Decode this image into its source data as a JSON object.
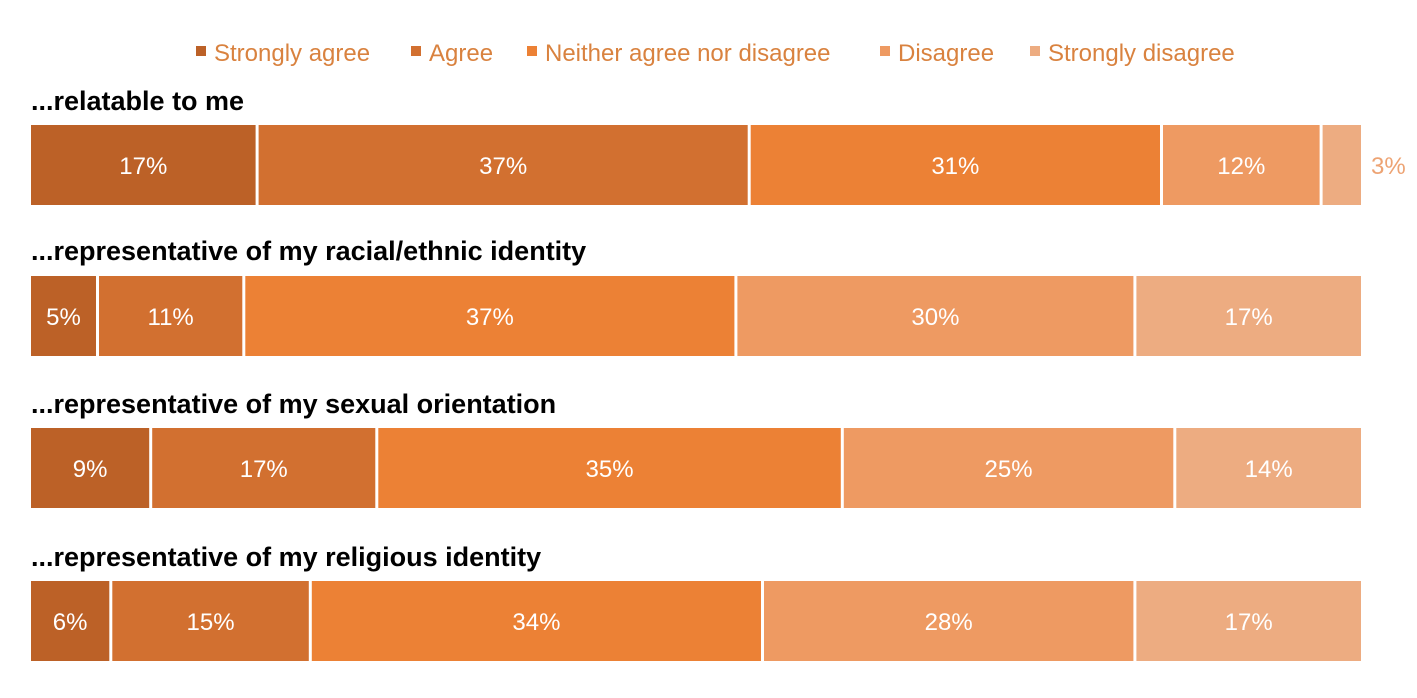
{
  "chart_data": {
    "type": "bar",
    "orientation": "horizontal",
    "stacked": true,
    "percent_scale": true,
    "title": "",
    "xlabel": "",
    "ylabel": "",
    "legend_position": "top",
    "grid": false,
    "categories": [
      "...relatable to me",
      "...representative of my racial/ethnic identity",
      "...representative of my sexual orientation",
      "...representative of my religious identity"
    ],
    "series": [
      {
        "name": "Strongly agree",
        "color": "#BC6127",
        "values": [
          17,
          5,
          9,
          6
        ],
        "labels": [
          "17%",
          "5%",
          "9%",
          "6%"
        ]
      },
      {
        "name": "Agree",
        "color": "#D27030",
        "values": [
          37,
          11,
          17,
          15
        ],
        "labels": [
          "37%",
          "11%",
          "17%",
          "15%"
        ]
      },
      {
        "name": "Neither agree nor disagree",
        "color": "#EC8135",
        "values": [
          31,
          37,
          35,
          34
        ],
        "labels": [
          "31%",
          "37%",
          "35%",
          "34%"
        ]
      },
      {
        "name": "Disagree",
        "color": "#EE9A62",
        "values": [
          12,
          30,
          25,
          28
        ],
        "labels": [
          "12%",
          "30%",
          "25%",
          "28%"
        ]
      },
      {
        "name": "Strongly disagree",
        "color": "#EDAC81",
        "values": [
          3,
          17,
          14,
          17
        ],
        "labels": [
          "3%",
          "17%",
          "14%",
          "17%"
        ]
      }
    ]
  }
}
